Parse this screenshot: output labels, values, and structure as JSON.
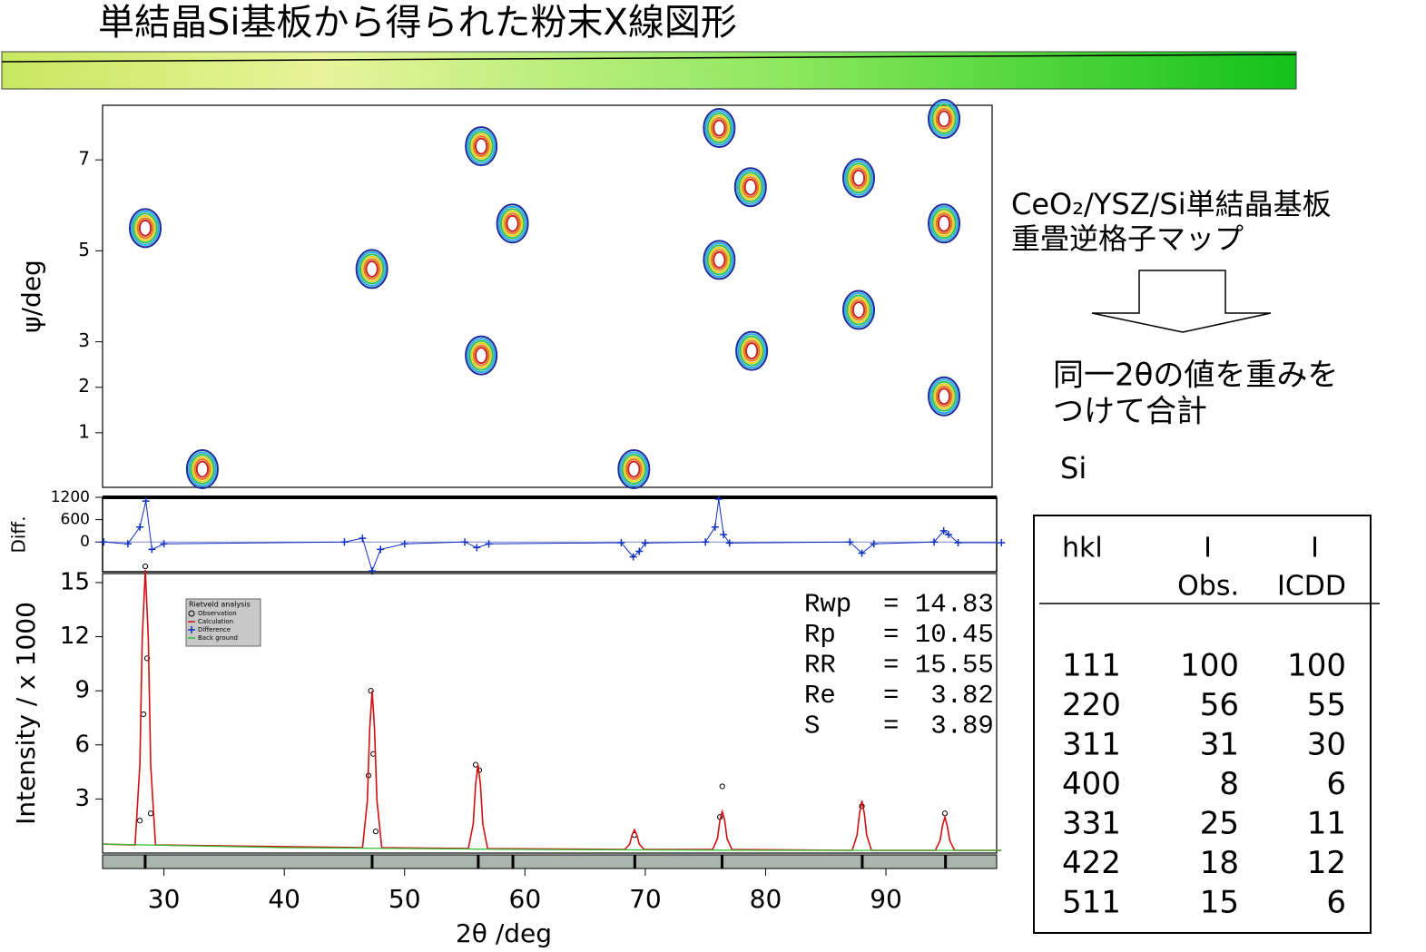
{
  "title": "単結晶Si基板から得られた粉末X線図形",
  "notes": {
    "map_label": [
      "CeO₂/YSZ/Si単結晶基板",
      "重畳逆格子マップ"
    ],
    "method": [
      "同一2θの値を重みを",
      "つけて合計"
    ],
    "material": "Si"
  },
  "table": {
    "header": [
      [
        "hkl"
      ],
      [
        "I",
        "Obs."
      ],
      [
        "I",
        "ICDD"
      ]
    ],
    "rows": [
      [
        "111",
        "100",
        "100"
      ],
      [
        "220",
        "56",
        "55"
      ],
      [
        "311",
        "31",
        "30"
      ],
      [
        "400",
        "8",
        "6"
      ],
      [
        "331",
        "25",
        "11"
      ],
      [
        "422",
        "18",
        "12"
      ],
      [
        "511",
        "15",
        "6"
      ]
    ]
  },
  "chart_data": [
    {
      "type": "contour",
      "ylabel": "ψ/deg",
      "xlim": [
        24.9,
        98.9
      ],
      "ylim": [
        -0.2,
        8.2
      ],
      "yticks": [
        1,
        2,
        3,
        5,
        7
      ],
      "x": [
        28.45,
        33.2,
        47.3,
        56.4,
        56.4,
        59.0,
        69.1,
        76.2,
        76.2,
        78.8,
        78.9,
        87.8,
        87.8,
        94.9,
        94.9,
        94.9
      ],
      "y": [
        5.5,
        0.2,
        4.6,
        7.3,
        2.7,
        5.6,
        0.2,
        7.7,
        4.8,
        6.4,
        2.8,
        6.6,
        3.7,
        7.9,
        5.6,
        1.8
      ],
      "ring_colors": [
        "#1a2a9a",
        "#2aa8e8",
        "#2fbf5a",
        "#e6d21e",
        "#e07a1a",
        "#cc1f1f"
      ]
    },
    {
      "type": "scatter",
      "ylabel": "Diff.",
      "xlim": [
        24.9,
        99.2
      ],
      "ylim": [
        -800,
        1200
      ],
      "yticks": [
        0,
        600,
        1200
      ],
      "series": [
        {
          "name": "Difference",
          "color": "#1030c0",
          "x": [
            25,
            27,
            28,
            28.5,
            29,
            30,
            45,
            46.5,
            47.3,
            48,
            50,
            55,
            56,
            57,
            68,
            69,
            69.5,
            70,
            75,
            75.8,
            76.1,
            76.5,
            77,
            87,
            88,
            89,
            94,
            94.8,
            95.2,
            96,
            99.6
          ],
          "values": [
            0,
            -50,
            400,
            1100,
            -200,
            -50,
            0,
            100,
            -780,
            -200,
            -50,
            0,
            -150,
            -50,
            -20,
            -400,
            -250,
            -30,
            0,
            400,
            1150,
            200,
            -30,
            0,
            -300,
            -50,
            0,
            300,
            200,
            -20,
            -20
          ]
        }
      ]
    },
    {
      "type": "line",
      "xlabel": "2θ /deg",
      "ylabel": "Intensity / x 1000",
      "xlim": [
        24.9,
        99.2
      ],
      "ylim": [
        0,
        15.5
      ],
      "xticks": [
        30,
        40,
        50,
        60,
        70,
        80,
        90
      ],
      "yticks": [
        3,
        6,
        9,
        12,
        15
      ],
      "legend_title": "Rietveld analysis",
      "stats": [
        "Rwp  = 14.83",
        "Rp   = 10.45",
        "RR   = 15.55",
        "Re   =  3.82",
        "S    =  3.89"
      ],
      "reflections": [
        28.44,
        47.3,
        56.12,
        59.0,
        69.13,
        76.38,
        88.03,
        94.95
      ],
      "series": [
        {
          "name": "Observation",
          "color": "#000000",
          "x": [
            28.0,
            28.3,
            28.45,
            28.6,
            28.9,
            47.0,
            47.2,
            47.4,
            47.6,
            55.9,
            56.2,
            69.1,
            76.2,
            76.4,
            88.0,
            94.9
          ],
          "values": [
            1.8,
            7.7,
            15.9,
            10.8,
            2.2,
            4.3,
            9.0,
            5.5,
            1.2,
            4.9,
            4.6,
            1.0,
            2.0,
            3.7,
            2.6,
            2.2
          ]
        },
        {
          "name": "Calculation",
          "color": "#d01010",
          "x": [
            25,
            27.6,
            28.0,
            28.2,
            28.45,
            28.7,
            28.9,
            29.3,
            46.5,
            46.9,
            47.1,
            47.3,
            47.5,
            47.7,
            48.1,
            55.3,
            55.7,
            55.9,
            56.1,
            56.3,
            56.5,
            56.9,
            68.3,
            68.7,
            68.9,
            69.1,
            69.3,
            69.5,
            69.9,
            75.6,
            76.0,
            76.2,
            76.4,
            76.6,
            76.8,
            77.2,
            87.2,
            87.6,
            87.8,
            88.0,
            88.2,
            88.4,
            88.8,
            94.1,
            94.5,
            94.7,
            94.9,
            95.1,
            95.3,
            95.7,
            99.6
          ],
          "values": [
            0.5,
            0.45,
            4.9,
            11.9,
            15.7,
            11.9,
            4.9,
            0.45,
            0.3,
            2.9,
            6.9,
            9.0,
            6.9,
            2.9,
            0.3,
            0.25,
            1.6,
            3.8,
            4.9,
            3.8,
            1.6,
            0.25,
            0.2,
            0.5,
            1.0,
            1.3,
            1.0,
            0.5,
            0.2,
            0.2,
            0.8,
            1.8,
            2.3,
            1.8,
            0.8,
            0.2,
            0.15,
            1.0,
            2.2,
            2.9,
            2.2,
            1.0,
            0.15,
            0.15,
            0.7,
            1.5,
            2.0,
            1.5,
            0.7,
            0.15,
            0.15
          ]
        },
        {
          "name": "Back ground",
          "color": "#30c030",
          "x": [
            25,
            40,
            60,
            80,
            99.6
          ],
          "values": [
            0.5,
            0.3,
            0.2,
            0.15,
            0.15
          ]
        }
      ]
    }
  ]
}
